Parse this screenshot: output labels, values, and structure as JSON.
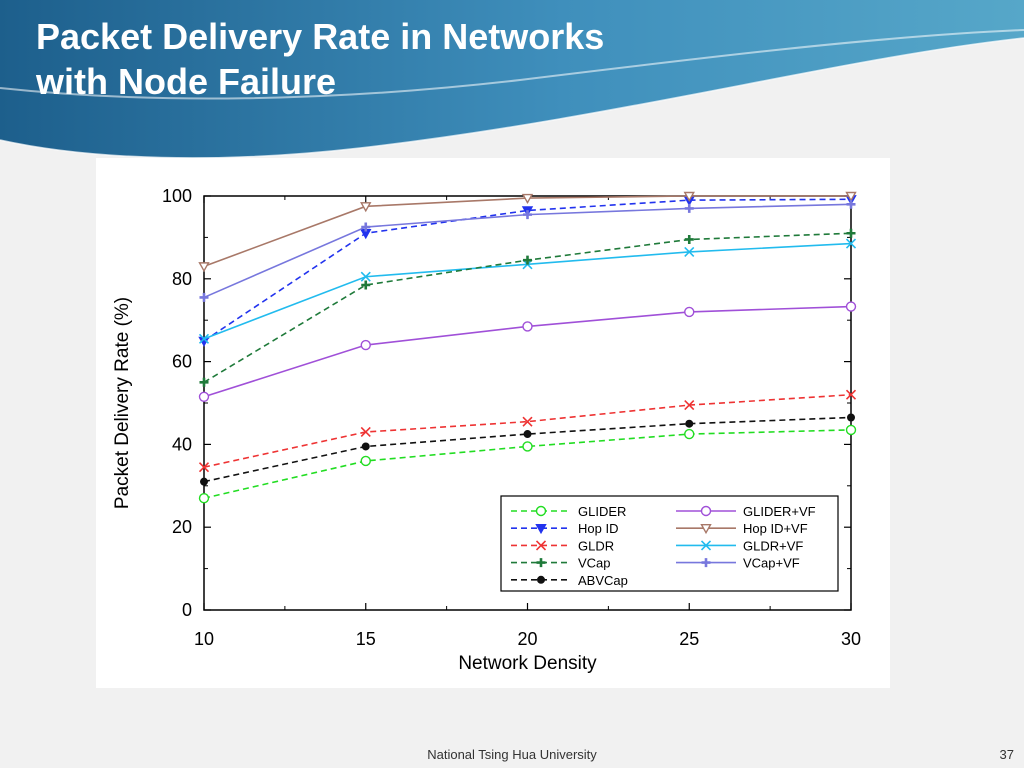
{
  "slide": {
    "title_line1": "Packet Delivery Rate in Networks",
    "title_line2": "with Node Failure",
    "footer": "National Tsing Hua University",
    "page_number": "37"
  },
  "colors": {
    "header_dark": "#1d5f8c",
    "header_light": "#56a7c9",
    "background": "#f1f1f1"
  },
  "chart_data": {
    "type": "line",
    "title": "",
    "xlabel": "Network Density",
    "ylabel": "Packet Delivery Rate (%)",
    "x": [
      10,
      15,
      20,
      25,
      30
    ],
    "xlim": [
      10,
      30
    ],
    "ylim": [
      0,
      100
    ],
    "xticks": [
      10,
      15,
      20,
      25,
      30
    ],
    "yticks": [
      0,
      20,
      40,
      60,
      80,
      100
    ],
    "grid": false,
    "legend_position": "bottom-right",
    "series": [
      {
        "name": "GLIDER",
        "values": [
          27,
          36,
          39.5,
          42.5,
          43.5
        ],
        "color": "#22dd22",
        "dash": true,
        "marker": "circle-open"
      },
      {
        "name": "GLIDER+VF",
        "values": [
          51.5,
          64,
          68.5,
          72,
          73.3
        ],
        "color": "#a050d8",
        "dash": false,
        "marker": "circle-open"
      },
      {
        "name": "Hop ID",
        "values": [
          65,
          91,
          96.5,
          99,
          99.2
        ],
        "color": "#2233ee",
        "dash": true,
        "marker": "triangle-down-filled"
      },
      {
        "name": "Hop ID+VF",
        "values": [
          83,
          97.5,
          99.5,
          100,
          100
        ],
        "color": "#a87868",
        "dash": false,
        "marker": "triangle-down-open"
      },
      {
        "name": "GLDR",
        "values": [
          34.5,
          43,
          45.5,
          49.5,
          52
        ],
        "color": "#ee3333",
        "dash": true,
        "marker": "x"
      },
      {
        "name": "GLDR+VF",
        "values": [
          65.5,
          80.5,
          83.5,
          86.5,
          88.5
        ],
        "color": "#22bbee",
        "dash": false,
        "marker": "x"
      },
      {
        "name": "VCap",
        "values": [
          55,
          78.5,
          84.5,
          89.5,
          91
        ],
        "color": "#1f7a3a",
        "dash": true,
        "marker": "plus"
      },
      {
        "name": "VCap+VF",
        "values": [
          75.5,
          92.5,
          95.5,
          97,
          98
        ],
        "color": "#7777dd",
        "dash": false,
        "marker": "plus"
      },
      {
        "name": "ABVCap",
        "values": [
          31,
          39.5,
          42.5,
          45,
          46.5
        ],
        "color": "#111111",
        "dash": true,
        "marker": "circle-filled"
      }
    ],
    "legend_columns": [
      [
        "GLIDER",
        "Hop ID",
        "GLDR",
        "VCap",
        "ABVCap"
      ],
      [
        "GLIDER+VF",
        "Hop ID+VF",
        "GLDR+VF",
        "VCap+VF"
      ]
    ]
  }
}
